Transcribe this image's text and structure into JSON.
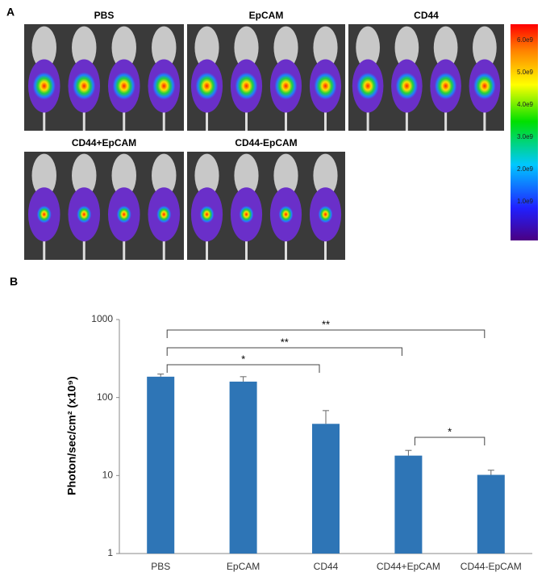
{
  "panel_a": {
    "label": "A",
    "groups": [
      "PBS",
      "EpCAM",
      "CD44",
      "CD44+EpCAM",
      "CD44-EpCAM"
    ],
    "colorbar": {
      "labels": [
        "6.0e9",
        "5.0e9",
        "4.0e9",
        "3.0e9",
        "2.0e9",
        "1.0e9"
      ]
    }
  },
  "chart_data": {
    "type": "bar",
    "panel_label": "B",
    "ylabel": "Photon/sec/cm² (x10⁹)",
    "categories": [
      "PBS",
      "EpCAM",
      "CD44",
      "CD44+EpCAM",
      "CD44-EpCAM"
    ],
    "values": [
      185,
      160,
      46,
      18,
      10.2
    ],
    "errors": [
      15,
      25,
      22,
      3,
      1.5
    ],
    "color": "#2e75b6",
    "log_scale": true,
    "ylim": [
      1,
      1000
    ],
    "yticks": [
      1,
      10,
      100,
      1000
    ],
    "annotations": [
      "**",
      "**",
      "*",
      "*"
    ]
  }
}
